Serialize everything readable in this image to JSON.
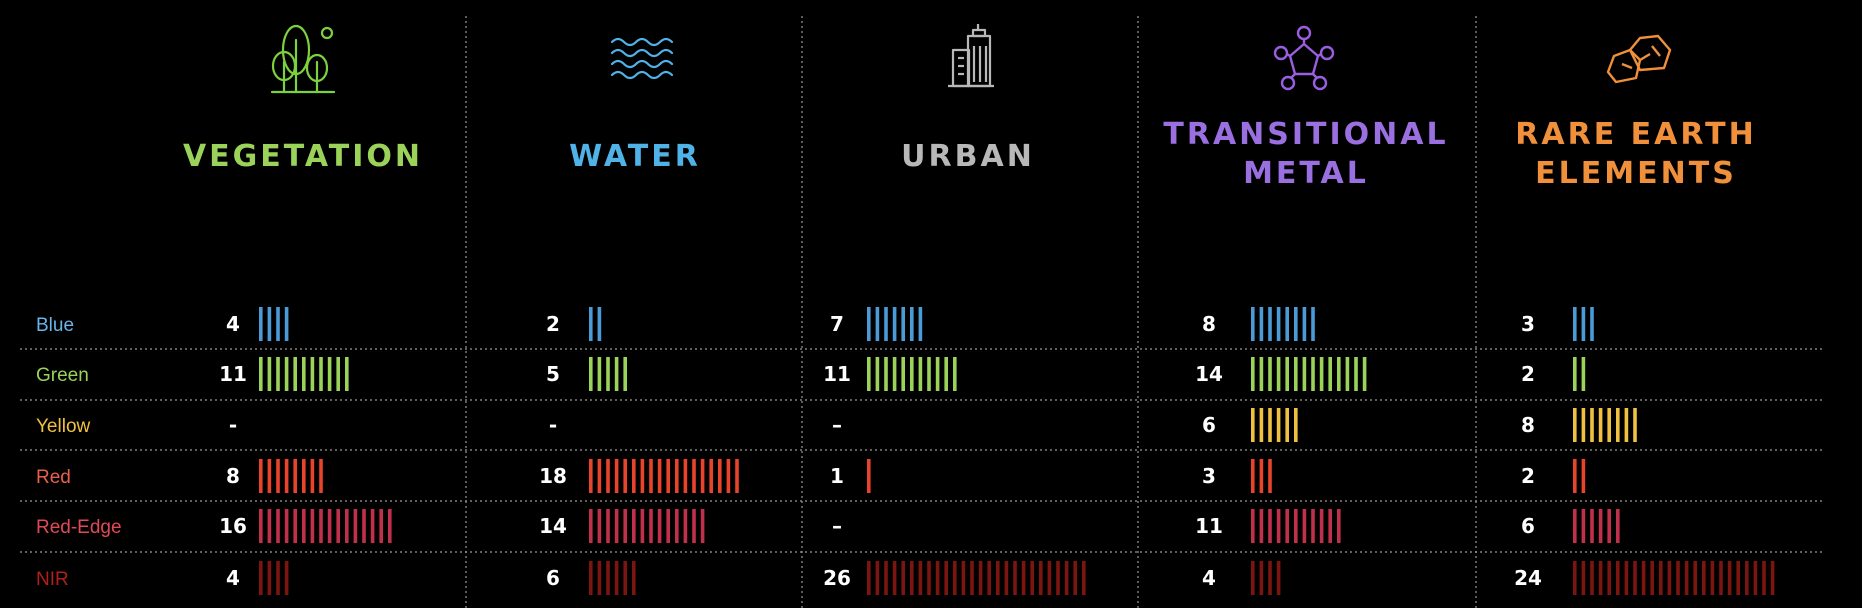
{
  "chart_data": {
    "type": "bar",
    "categories": [
      "Blue",
      "Green",
      "Yellow",
      "Red",
      "Red-Edge",
      "NIR"
    ],
    "category_colors": [
      "#4a9bd6",
      "#9bd35a",
      "#f0c040",
      "#e8432b",
      "#c0304a",
      "#7a1510"
    ],
    "label_colors": [
      "#6ab4e8",
      "#9bd35a",
      "#f0c040",
      "#e8604a",
      "#e04a55",
      "#b0201a"
    ],
    "series": [
      {
        "name": "VEGETATION",
        "title_lines": [
          "VEGETATION"
        ],
        "color": "#9bd35a",
        "icon": "trees-icon",
        "values": [
          4,
          11,
          null,
          8,
          16,
          4
        ],
        "labels": [
          "4",
          "11",
          "-",
          "8",
          "16",
          "4"
        ]
      },
      {
        "name": "WATER",
        "title_lines": [
          "WATER"
        ],
        "color": "#4fb3e8",
        "icon": "water-waves-icon",
        "values": [
          2,
          5,
          null,
          18,
          14,
          6
        ],
        "labels": [
          "2",
          "5",
          "-",
          "18",
          "14",
          "6"
        ]
      },
      {
        "name": "URBAN",
        "title_lines": [
          "URBAN"
        ],
        "color": "#b8b8b8",
        "icon": "buildings-icon",
        "values": [
          7,
          11,
          null,
          1,
          null,
          26
        ],
        "labels": [
          "7",
          "11",
          "–",
          "1",
          "–",
          "26"
        ]
      },
      {
        "name": "TRANSITIONAL METAL",
        "title_lines": [
          "TRANSITIONAL",
          "METAL"
        ],
        "color": "#9a6fe0",
        "icon": "molecule-icon",
        "values": [
          8,
          14,
          6,
          3,
          11,
          4
        ],
        "labels": [
          "8",
          "14",
          "6",
          "3",
          "11",
          "4"
        ]
      },
      {
        "name": "RARE EARTH ELEMENTS",
        "title_lines": [
          "RARE EARTH",
          "ELEMENTS"
        ],
        "color": "#f0903a",
        "icon": "rocks-icon",
        "values": [
          3,
          2,
          8,
          2,
          6,
          24
        ],
        "labels": [
          "3",
          "2",
          "8",
          "2",
          "6",
          "24"
        ]
      }
    ],
    "grid": true
  }
}
